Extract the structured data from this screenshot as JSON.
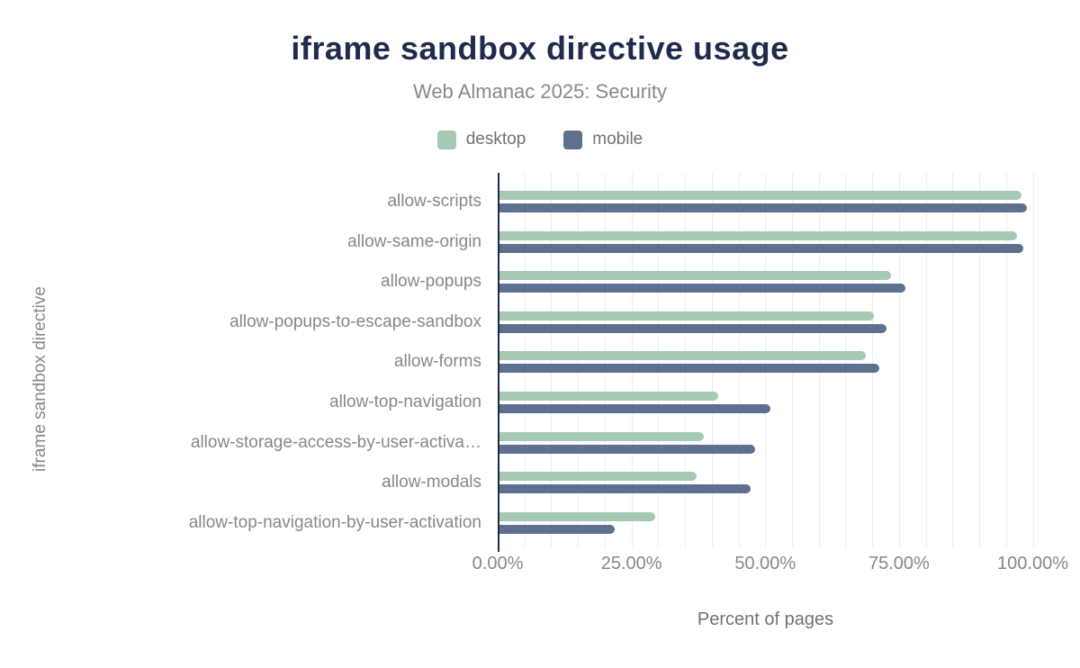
{
  "header": {
    "title": "iframe sandbox directive usage",
    "subtitle": "Web Almanac 2025: Security"
  },
  "legend": {
    "items": [
      {
        "label": "desktop",
        "color": "#a5c9b4"
      },
      {
        "label": "mobile",
        "color": "#5e7090"
      }
    ]
  },
  "colors": {
    "title": "#1e2b4d",
    "axis_line": "#1c2b4a",
    "gridline": "#ededed",
    "muted_text": "#84888d",
    "desktop_bar": "#a5c9b4",
    "mobile_bar": "#5e7090"
  },
  "chart_data": {
    "type": "bar",
    "orientation": "horizontal",
    "title": "iframe sandbox directive usage",
    "subtitle": "Web Almanac 2025: Security",
    "xlabel": "Percent of pages",
    "ylabel": "iframe sandbox directive",
    "categories": [
      "allow-scripts",
      "allow-same-origin",
      "allow-popups",
      "allow-popups-to-escape-sandbox",
      "allow-forms",
      "allow-top-navigation",
      "allow-storage-access-by-user-activa…",
      "allow-modals",
      "allow-top-navigation-by-user-activation"
    ],
    "series": [
      {
        "name": "desktop",
        "color": "#a5c9b4",
        "values": [
          97.5,
          96.8,
          73.2,
          69.9,
          68.5,
          40.9,
          38.2,
          36.9,
          29.1
        ]
      },
      {
        "name": "mobile",
        "color": "#5e7090",
        "values": [
          98.5,
          97.9,
          75.9,
          72.4,
          70.9,
          50.7,
          47.7,
          46.9,
          21.6
        ]
      }
    ],
    "x_tick_values": [
      0,
      25,
      50,
      75,
      100
    ],
    "x_tick_labels": [
      "0.00%",
      "25.00%",
      "50.00%",
      "75.00%",
      "100.00%"
    ],
    "xlim": [
      0,
      101
    ],
    "grid": "vertical minor gridlines every 5%",
    "legend_position": "top"
  }
}
